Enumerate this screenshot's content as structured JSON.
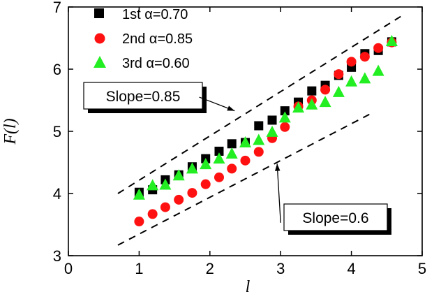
{
  "chart_data": {
    "type": "scatter",
    "xlabel": "l",
    "ylabel_prefix": "F(",
    "ylabel_var": "l",
    "ylabel_suffix": ")",
    "xlim": [
      0,
      5
    ],
    "ylim": [
      3,
      7
    ],
    "xticks": [
      0,
      1,
      2,
      3,
      4,
      5
    ],
    "yticks": [
      3,
      4,
      5,
      6,
      7
    ],
    "grid": false,
    "legend_position": "top-left",
    "series": [
      {
        "name": "1st α=0.70",
        "marker": "square",
        "color": "#000000",
        "x": [
          1.0,
          1.19,
          1.37,
          1.56,
          1.75,
          1.94,
          2.13,
          2.31,
          2.5,
          2.69,
          2.88,
          3.06,
          3.25,
          3.44,
          3.63,
          3.82,
          4.0,
          4.19,
          4.38,
          4.57
        ],
        "y": [
          4.02,
          4.06,
          4.22,
          4.3,
          4.43,
          4.56,
          4.68,
          4.8,
          4.82,
          5.09,
          5.18,
          5.33,
          5.47,
          5.65,
          5.74,
          5.9,
          6.03,
          6.25,
          6.3,
          6.44
        ]
      },
      {
        "name": "2nd α=0.85",
        "marker": "circle",
        "color": "#ff1111",
        "x": [
          1.0,
          1.19,
          1.37,
          1.56,
          1.75,
          1.94,
          2.13,
          2.31,
          2.5,
          2.69,
          2.88,
          3.06,
          3.25,
          3.44,
          3.63,
          3.82,
          4.0,
          4.19,
          4.38,
          4.57
        ],
        "y": [
          3.55,
          3.67,
          3.78,
          3.9,
          4.01,
          4.15,
          4.26,
          4.4,
          4.53,
          4.67,
          4.89,
          5.07,
          5.4,
          5.5,
          5.67,
          5.92,
          6.12,
          6.2,
          6.34,
          6.43
        ]
      },
      {
        "name": "3rd α=0.60",
        "marker": "triangle",
        "color": "#22ee22",
        "x": [
          1.0,
          1.19,
          1.37,
          1.56,
          1.75,
          1.94,
          2.13,
          2.31,
          2.5,
          2.69,
          2.88,
          3.06,
          3.25,
          3.44,
          3.63,
          3.82,
          4.0,
          4.19,
          4.38,
          4.57
        ],
        "y": [
          3.98,
          4.13,
          4.14,
          4.29,
          4.4,
          4.47,
          4.56,
          4.64,
          4.82,
          4.86,
          4.99,
          5.22,
          5.38,
          5.43,
          5.47,
          5.63,
          5.8,
          5.85,
          5.97,
          6.45
        ]
      }
    ],
    "reference_lines": [
      {
        "x": [
          0.7,
          4.7
        ],
        "y": [
          4.0,
          6.85
        ]
      },
      {
        "x": [
          0.7,
          4.3
        ],
        "y": [
          3.17,
          5.3
        ]
      }
    ],
    "annotations": [
      {
        "text": "Slope=0.85",
        "arrow_from": [
          1.85,
          5.55
        ],
        "arrow_to": [
          2.35,
          5.33
        ]
      },
      {
        "text": "Slope=0.6",
        "arrow_from": [
          3.0,
          3.53
        ],
        "arrow_to": [
          2.95,
          4.48
        ]
      }
    ]
  }
}
